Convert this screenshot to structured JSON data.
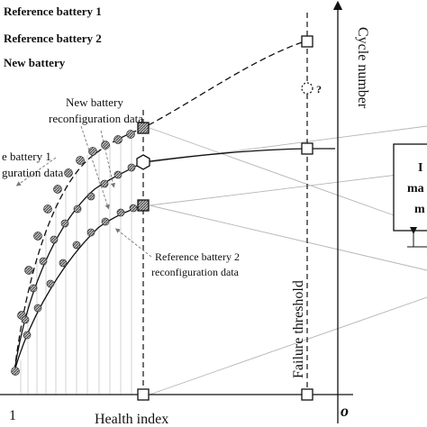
{
  "legend": {
    "reference_battery_1": "Reference battery 1",
    "reference_battery_2": "Reference battery 2",
    "new_battery": "New battery"
  },
  "axes": {
    "x_label": "Health index",
    "y_label": "Cycle number",
    "origin_label": "o",
    "x_start_label": "1",
    "failure_threshold_label": "Failure threshold"
  },
  "annotations": {
    "new_battery_data_line1": "New battery",
    "new_battery_data_line2": "reconfiguration data",
    "ref1_data_line1": "e battery 1",
    "ref1_data_line2": "guration data",
    "ref2_data_line1": "Reference battery 2",
    "ref2_data_line2": "reconfiguration data",
    "unknown_mark": "?"
  },
  "side_box": {
    "line1": "I",
    "line2": "ma",
    "line3": "m"
  }
}
